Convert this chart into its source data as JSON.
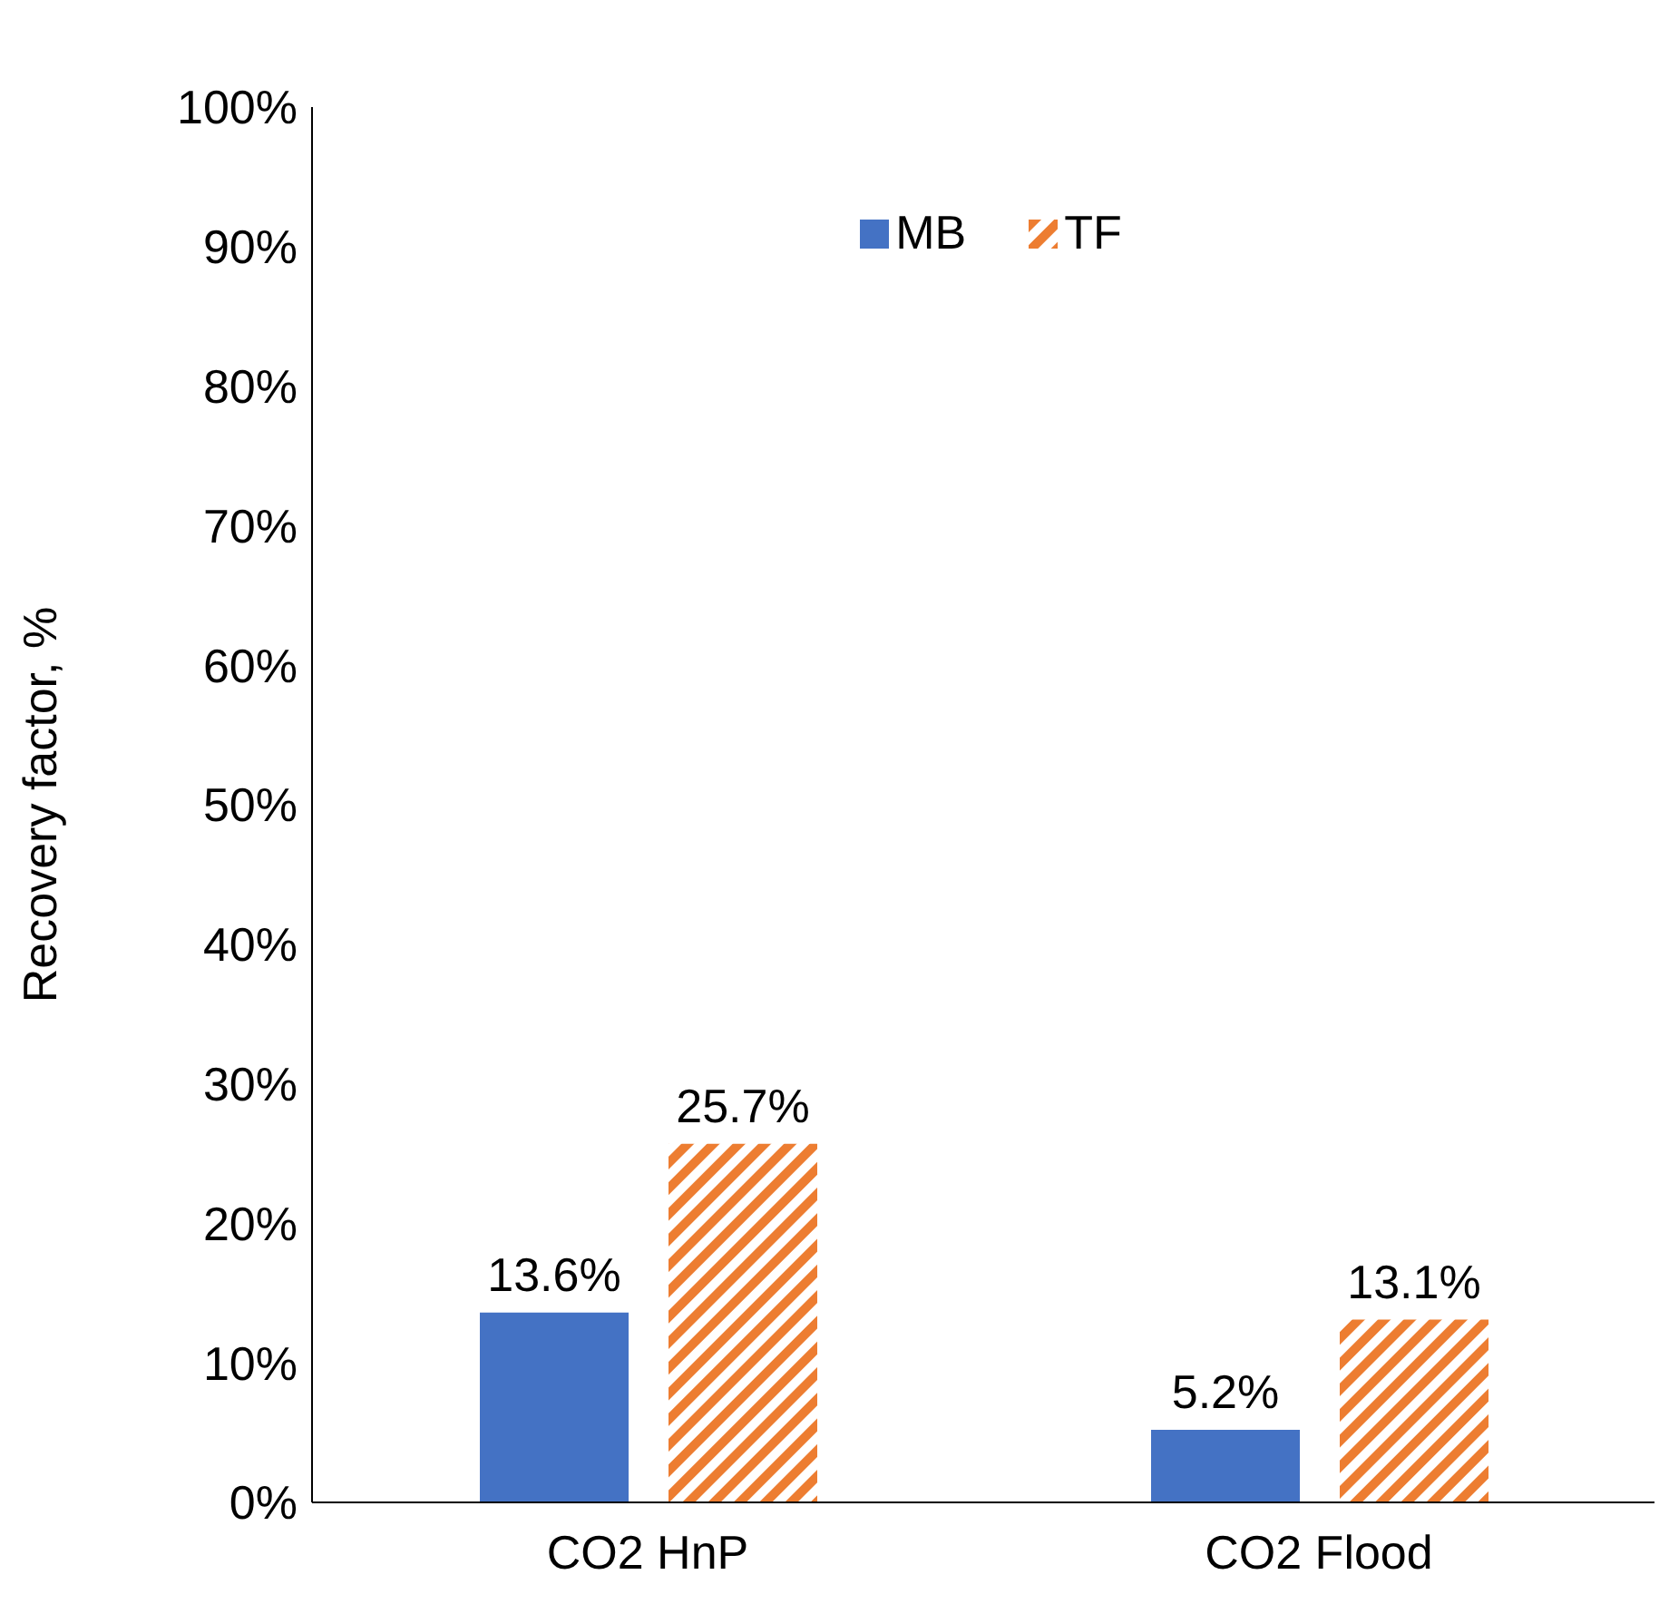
{
  "chart_data": {
    "type": "bar",
    "ylabel": "Recovery factor, %",
    "categories": [
      "CO2 HnP",
      "CO2 Flood"
    ],
    "series": [
      {
        "name": "MB",
        "color": "#4472c4",
        "values": [
          13.6,
          5.2
        ],
        "value_labels": [
          "13.6%",
          "5.2%"
        ]
      },
      {
        "name": "TF",
        "color": "#ed7d31",
        "values": [
          25.7,
          13.1
        ],
        "value_labels": [
          "25.7%",
          "13.1%"
        ]
      }
    ],
    "ylim": [
      0,
      100
    ],
    "yticks": [
      {
        "value": 0,
        "label": "0%"
      },
      {
        "value": 10,
        "label": "10%"
      },
      {
        "value": 20,
        "label": "20%"
      },
      {
        "value": 30,
        "label": "30%"
      },
      {
        "value": 40,
        "label": "40%"
      },
      {
        "value": 50,
        "label": "50%"
      },
      {
        "value": 60,
        "label": "60%"
      },
      {
        "value": 70,
        "label": "70%"
      },
      {
        "value": 80,
        "label": "80%"
      },
      {
        "value": 90,
        "label": "90%"
      },
      {
        "value": 100,
        "label": "100%"
      }
    ],
    "grid": false,
    "legend": "top"
  }
}
